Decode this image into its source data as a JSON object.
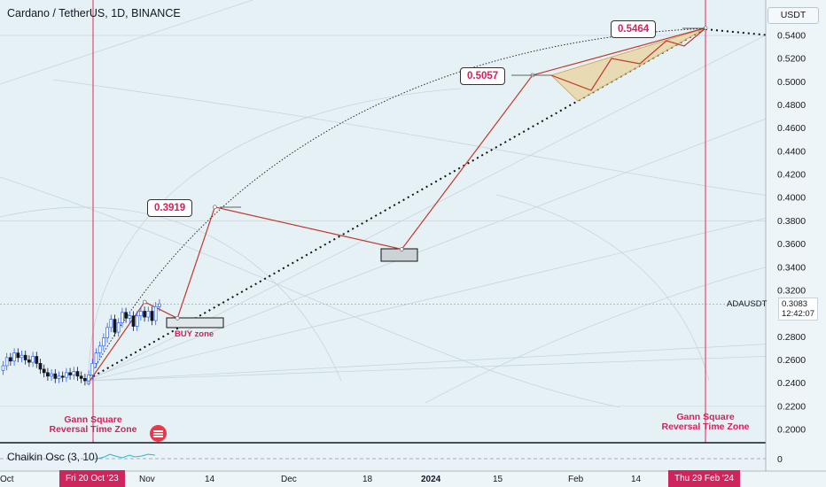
{
  "header": {
    "title": "Cardano / TetherUS, 1D, BINANCE",
    "currency": "USDT"
  },
  "indicator": {
    "label": "Chaikin Osc (3, 10)",
    "zero_label": "0"
  },
  "last_price": {
    "symbol": "ADAUSDT",
    "price": "0.3083",
    "countdown": "12:42:07"
  },
  "annotations": {
    "p1": "0.3919",
    "p2": "0.5057",
    "p3": "0.5464",
    "buy_zone": "BUY zone",
    "gann_left": "Gann Square Reversal Time Zone",
    "gann_right": "Gann Square Reversal Time Zone",
    "flag_icon": "us-flag-icon"
  },
  "x_axis": {
    "labels": [
      "Oct",
      "Nov",
      "14",
      "Dec",
      "18",
      "2024",
      "15",
      "Feb",
      "14"
    ],
    "highlight_left": "Fri 20 Oct '23",
    "highlight_right": "Thu 29 Feb '24"
  },
  "colors": {
    "background": "#e6f1f6",
    "accent": "#d0245c",
    "candle_up": "#2962ff",
    "candle_down": "#131722",
    "wedge_fill": "#e8d6a6"
  },
  "chart_data": {
    "type": "candlestick",
    "symbol": "ADAUSDT",
    "exchange": "BINANCE",
    "interval": "1D",
    "y_axis_labels": [
      "0.5400",
      "0.5200",
      "0.5000",
      "0.4800",
      "0.4600",
      "0.4400",
      "0.4200",
      "0.4000",
      "0.3800",
      "0.3600",
      "0.3400",
      "0.3200",
      "0.2800",
      "0.2600",
      "0.2400",
      "0.2200",
      "0.2000"
    ],
    "ylim": [
      0.193,
      0.565
    ],
    "last_price": 0.3083,
    "candles_close": [
      0.255,
      0.262,
      0.259,
      0.266,
      0.262,
      0.264,
      0.26,
      0.258,
      0.263,
      0.257,
      0.252,
      0.249,
      0.246,
      0.248,
      0.244,
      0.246,
      0.245,
      0.249,
      0.247,
      0.25,
      0.246,
      0.244,
      0.242,
      0.247,
      0.257,
      0.266,
      0.272,
      0.279,
      0.288,
      0.295,
      0.284,
      0.292,
      0.301,
      0.296,
      0.298,
      0.289,
      0.298,
      0.302,
      0.297,
      0.302,
      0.294,
      0.306,
      0.3083
    ],
    "projection_path": [
      {
        "date": "2023-10-20",
        "price": 0.2405
      },
      {
        "date": "2023-11-01",
        "price": 0.31
      },
      {
        "date": "2023-11-08",
        "price": 0.296
      },
      {
        "date": "2023-11-16",
        "price": 0.3919
      },
      {
        "date": "2023-12-26",
        "price": 0.3555
      },
      {
        "date": "2024-01-23",
        "price": 0.5057
      },
      {
        "date": "2024-02-29",
        "price": 0.5464
      }
    ],
    "buy_zone_box": {
      "price_range": [
        0.2905,
        0.2985
      ]
    },
    "second_box": {
      "price_range": [
        0.3455,
        0.3555
      ]
    },
    "vertical_markers": [
      "2023-10-20",
      "2024-02-29"
    ]
  }
}
